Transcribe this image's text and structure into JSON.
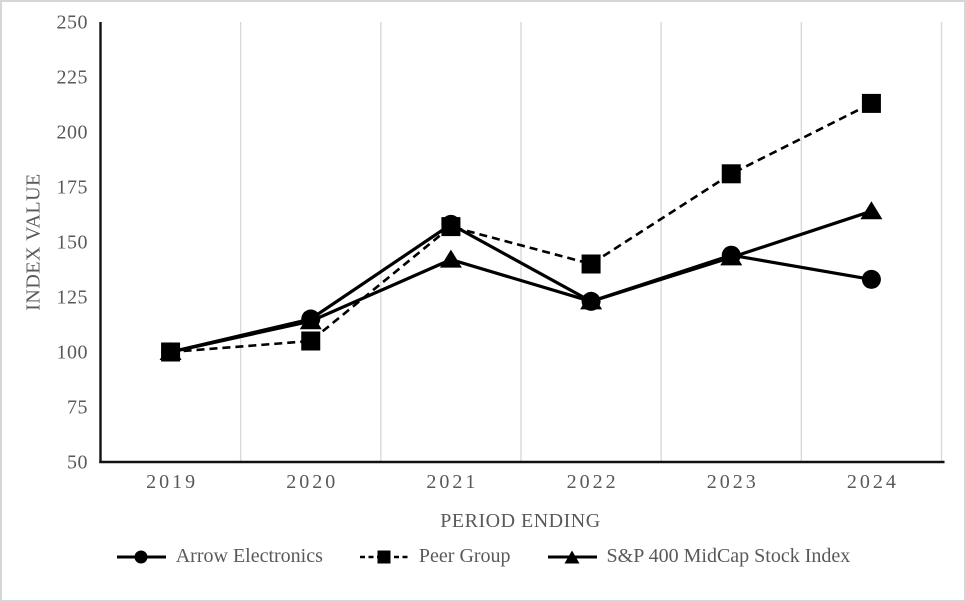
{
  "chart_data": {
    "type": "line",
    "title": "",
    "xlabel": "PERIOD ENDING",
    "ylabel": "INDEX VALUE",
    "categories": [
      "2019",
      "2020",
      "2021",
      "2022",
      "2023",
      "2024"
    ],
    "ylim": [
      50,
      250
    ],
    "y_ticks": [
      50,
      75,
      100,
      125,
      150,
      175,
      200,
      225,
      250
    ],
    "grid": "vertical-category-boundaries",
    "legend_position": "bottom",
    "series": [
      {
        "name": "Arrow Electronics",
        "marker": "circle",
        "line": "solid",
        "values": [
          100,
          115,
          158,
          123,
          144,
          133
        ]
      },
      {
        "name": "Peer Group",
        "marker": "square",
        "line": "dashed",
        "values": [
          100,
          105,
          157,
          140,
          181,
          213
        ]
      },
      {
        "name": "S&P 400 MidCap Stock Index",
        "marker": "triangle",
        "line": "solid",
        "values": [
          100,
          114,
          142,
          123,
          143,
          164
        ]
      }
    ]
  },
  "colors": {
    "series": "#000000",
    "axis_text": "#595959",
    "axis_line": "#111111",
    "gridline": "#d9d9d9",
    "background": "#ffffff",
    "frame_border": "#d6d6d6"
  }
}
